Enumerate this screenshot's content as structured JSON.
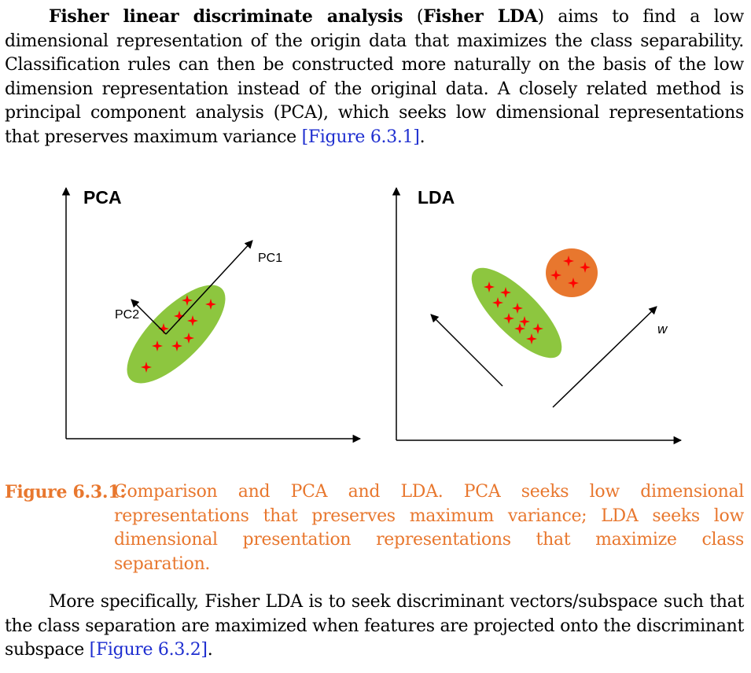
{
  "paragraph1": {
    "term": "Fisher linear discriminate analysis",
    "open_paren": " (",
    "term_abbr": "Fisher LDA",
    "text": ") aims to find a low dimensional representation of the origin data that maximizes the class separability. Classification rules can then be constructed more naturally on the basis of the low dimension representation instead of the original data. A closely related method is principal component analysis (PCA), which seeks low dimensional representations that preserves maximum variance ",
    "ref": "[Figure 6.3.1]",
    "end": "."
  },
  "figure": {
    "pca_panel": {
      "title": "PCA",
      "pc1_label": "PC1",
      "pc2_label": "PC2"
    },
    "lda_panel": {
      "title": "LDA",
      "w_label": "w"
    },
    "colors": {
      "green_class": "#8dc63f",
      "orange_class": "#e8772e",
      "point": "#ff0000"
    }
  },
  "caption": {
    "label": "Figure 6.3.1:",
    "text": "Comparison and PCA and LDA. PCA seeks low dimensional representations that preserves maximum variance; LDA seeks low dimensional presentation representations that maximize class separation."
  },
  "paragraph2": {
    "text": "More specifically, Fisher LDA is to seek discriminant vectors/subspace such that the class separation are maximized when features are projected onto the discriminant subspace ",
    "ref": "[Figure 6.3.2]",
    "end": "."
  }
}
